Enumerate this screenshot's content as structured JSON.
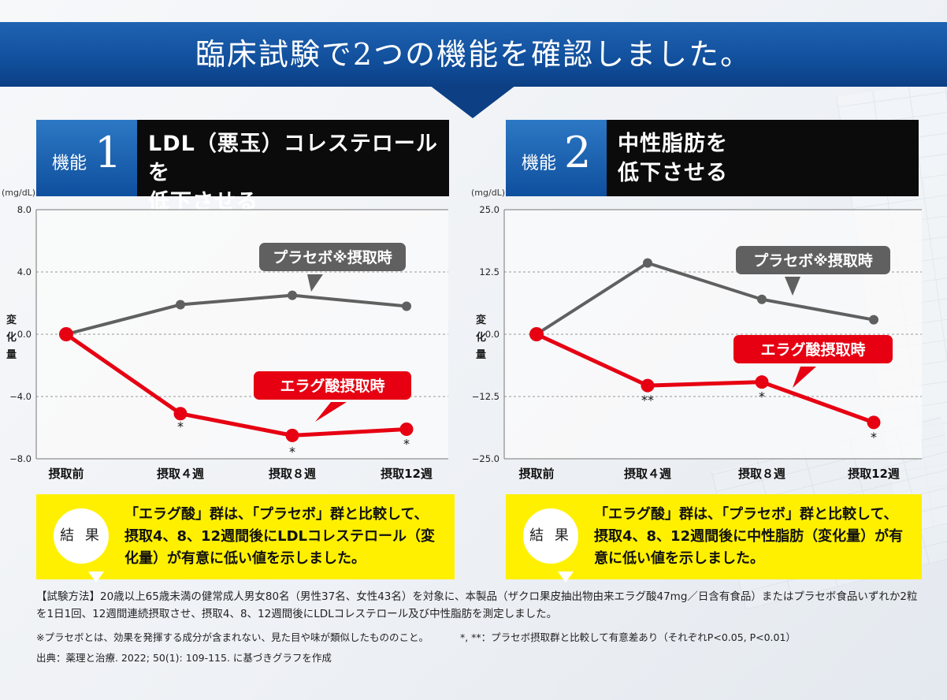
{
  "banner": {
    "title": "臨床試験で2つの機能を確認しました。"
  },
  "features": [
    {
      "label": "機能",
      "number": "1",
      "desc_line1": "LDL（悪玉）コレステロールを",
      "desc_line2": "低下させる",
      "result_badge": "結 果",
      "result_text": "「エラグ酸」群は、「プラセボ」群と比較して、摂取4、8、12週間後にLDLコレステロール（変化量）が有意に低い値を示しました。"
    },
    {
      "label": "機能",
      "number": "2",
      "desc_line1": "中性脂肪を",
      "desc_line2": "低下させる",
      "result_badge": "結 果",
      "result_text": "「エラグ酸」群は、「プラセボ」群と比較して、摂取4、8、12週間後に中性脂肪（変化量）が有意に低い値を示しました。"
    }
  ],
  "chart_data": [
    {
      "type": "line",
      "unit": "(mg/dL)",
      "ylabel": "変化量",
      "categories": [
        "摂取前",
        "摂取４週",
        "摂取８週",
        "摂取12週"
      ],
      "ylim": [
        -8,
        8
      ],
      "yticks": [
        "8.0",
        "4.0",
        "0.0",
        "−4.0",
        "−8.0"
      ],
      "ytick_values": [
        8,
        4,
        0,
        -4,
        -8
      ],
      "grid": true,
      "series": [
        {
          "name": "プラセボ※摂取時",
          "color": "#606060",
          "values": [
            0,
            1.9,
            2.5,
            1.8
          ]
        },
        {
          "name": "エラグ酸摂取時",
          "color": "#e60012",
          "values": [
            0,
            -5.1,
            -6.5,
            -6.1
          ]
        }
      ],
      "significance": [
        "",
        "*",
        "*",
        "*"
      ]
    },
    {
      "type": "line",
      "unit": "(mg/dL)",
      "ylabel": "変化量",
      "categories": [
        "摂取前",
        "摂取４週",
        "摂取８週",
        "摂取12週"
      ],
      "ylim": [
        -25,
        25
      ],
      "yticks": [
        "25.0",
        "12.5",
        "0.0",
        "−12.5",
        "−25.0"
      ],
      "ytick_values": [
        25,
        12.5,
        0,
        -12.5,
        -25
      ],
      "grid": true,
      "series": [
        {
          "name": "プラセボ※摂取時",
          "color": "#606060",
          "values": [
            0,
            14.3,
            7.0,
            2.9
          ]
        },
        {
          "name": "エラグ酸摂取時",
          "color": "#e60012",
          "values": [
            0,
            -10.3,
            -9.6,
            -17.7
          ]
        }
      ],
      "significance": [
        "",
        "**",
        "*",
        "*"
      ]
    }
  ],
  "notes": {
    "method": "【試験方法】20歳以上65歳未満の健常成人男女80名（男性37名、女性43名）を対象に、本製品（ザクロ果皮抽出物由来エラグ酸47mg／日含有食品）またはプラセボ食品いずれか2粒を1日1回、12週間連続摂取させ、摂取4、8、12週間後にLDLコレステロール及び中性脂肪を測定しました。",
    "placebo_def": "※プラセボとは、効果を発揮する成分が含まれない、見た目や味が類似したもののこと。",
    "significance": "*, **：プラセボ摂取群と比較して有意差あり（それぞれP<0.05, P<0.01）",
    "source": "出典：薬理と治療. 2022; 50(1): 109-115. に基づきグラフを作成"
  }
}
